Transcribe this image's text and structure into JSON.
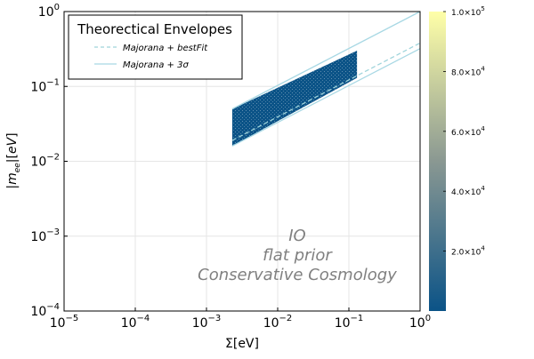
{
  "chart_data": {
    "type": "heatmap",
    "xlabel": "Σ[eV]",
    "ylabel": "|m_ee|[eV]",
    "xscale": "log",
    "yscale": "log",
    "xlim": [
      1e-05,
      1
    ],
    "ylim": [
      0.0001,
      1
    ],
    "x_ticks": [
      {
        "value": 1e-05,
        "base": "10",
        "exp": "−5"
      },
      {
        "value": 0.0001,
        "base": "10",
        "exp": "−4"
      },
      {
        "value": 0.001,
        "base": "10",
        "exp": "−3"
      },
      {
        "value": 0.01,
        "base": "10",
        "exp": "−2"
      },
      {
        "value": 0.1,
        "base": "10",
        "exp": "−1"
      },
      {
        "value": 1,
        "base": "10",
        "exp": "0"
      }
    ],
    "y_ticks": [
      {
        "value": 0.0001,
        "base": "10",
        "exp": "−4"
      },
      {
        "value": 0.001,
        "base": "10",
        "exp": "−3"
      },
      {
        "value": 0.01,
        "base": "10",
        "exp": "−2"
      },
      {
        "value": 0.1,
        "base": "10",
        "exp": "−1"
      },
      {
        "value": 1,
        "base": "10",
        "exp": "0"
      }
    ],
    "grid": true,
    "colorbar": {
      "min": 0,
      "max": 100000,
      "ticks": [
        {
          "value": 20000,
          "mant": "2.0",
          "exp": "4"
        },
        {
          "value": 40000,
          "mant": "4.0",
          "exp": "4"
        },
        {
          "value": 60000,
          "mant": "6.0",
          "exp": "4"
        },
        {
          "value": 80000,
          "mant": "8.0",
          "exp": "4"
        },
        {
          "value": 100000,
          "mant": "1.0",
          "exp": "5"
        }
      ],
      "colors": [
        "#0b5387",
        "#8a9892",
        "#ffffa8"
      ]
    },
    "density_region": {
      "sigma_min": 0.0023,
      "sigma_max": 0.13,
      "lower_mee_at_min": 0.016,
      "lower_mee_at_max": 0.13,
      "upper_mee_at_min": 0.05,
      "upper_mee_at_max": 0.3,
      "color": "#0b5387"
    },
    "series": [
      {
        "name": "Majorana + bestFit",
        "style": "dashed",
        "color": "#9fd4db",
        "x": [
          0.0023,
          1
        ],
        "y": [
          0.019,
          0.38
        ]
      },
      {
        "name": "Majorana + 3σ upper",
        "style": "solid",
        "color": "#a8d8e4",
        "x": [
          0.0023,
          1
        ],
        "y": [
          0.05,
          1.0
        ]
      },
      {
        "name": "Majorana + 3σ lower",
        "style": "solid",
        "color": "#a8d8e4",
        "x": [
          0.0023,
          1
        ],
        "y": [
          0.016,
          0.32
        ]
      }
    ],
    "legend": {
      "title": "Theorectical Envelopes",
      "position": "top-left",
      "entries": [
        {
          "label": "Majorana + bestFit",
          "style": "dashed",
          "color": "#9fd4db"
        },
        {
          "label": "Majorana + 3σ",
          "style": "solid",
          "color": "#a8d8e4"
        }
      ]
    },
    "annotation": [
      "IO",
      "flat prior",
      "Conservative Cosmology"
    ]
  }
}
